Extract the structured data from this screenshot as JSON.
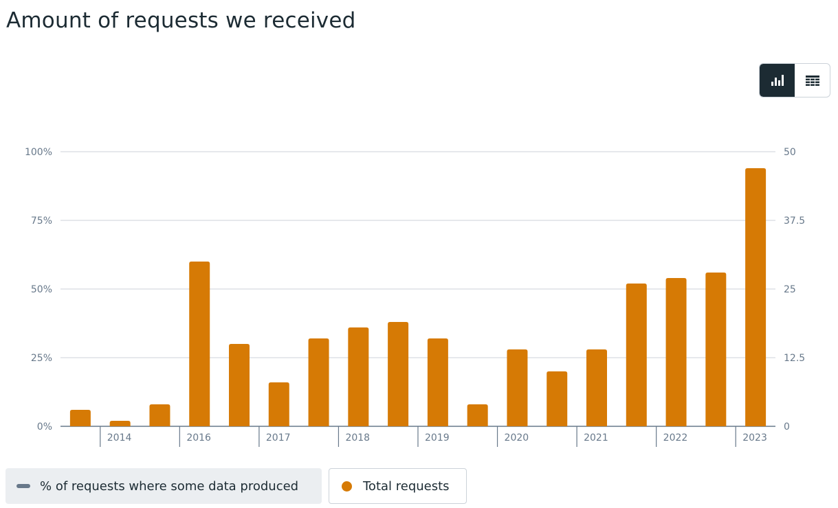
{
  "page": {
    "title": "Amount of requests we received"
  },
  "view_toggle": {
    "options": [
      {
        "name": "chart-view",
        "icon": "bar-chart-icon",
        "active": true
      },
      {
        "name": "table-view",
        "icon": "table-icon",
        "active": false
      }
    ]
  },
  "legend": {
    "items": [
      {
        "label": "% of requests where some data produced",
        "marker": "line",
        "color": "#67788a"
      },
      {
        "label": "Total requests",
        "marker": "dot",
        "color": "#d67a05"
      }
    ]
  },
  "colors": {
    "bar": "#d67a05",
    "grid": "#dde1e5",
    "axis": "#67788a",
    "text": "#1c2b33"
  },
  "chart_data": {
    "type": "bar",
    "title": "Amount of requests we received",
    "left_axis": {
      "ticks": [
        "0%",
        "25%",
        "50%",
        "75%",
        "100%"
      ],
      "range": [
        0,
        100
      ]
    },
    "right_axis": {
      "ticks": [
        "0",
        "12.5",
        "25",
        "37.5",
        "50"
      ],
      "range": [
        0,
        50
      ]
    },
    "x_tick_labels": [
      "2014",
      "2016",
      "2017",
      "2018",
      "2019",
      "2020",
      "2021",
      "2022",
      "2023"
    ],
    "grid": true,
    "series": [
      {
        "name": "Total requests",
        "axis": "right",
        "values": [
          3,
          1,
          4,
          30,
          15,
          8,
          16,
          18,
          19,
          16,
          4,
          14,
          10,
          14,
          26,
          27,
          28,
          47
        ]
      }
    ]
  }
}
